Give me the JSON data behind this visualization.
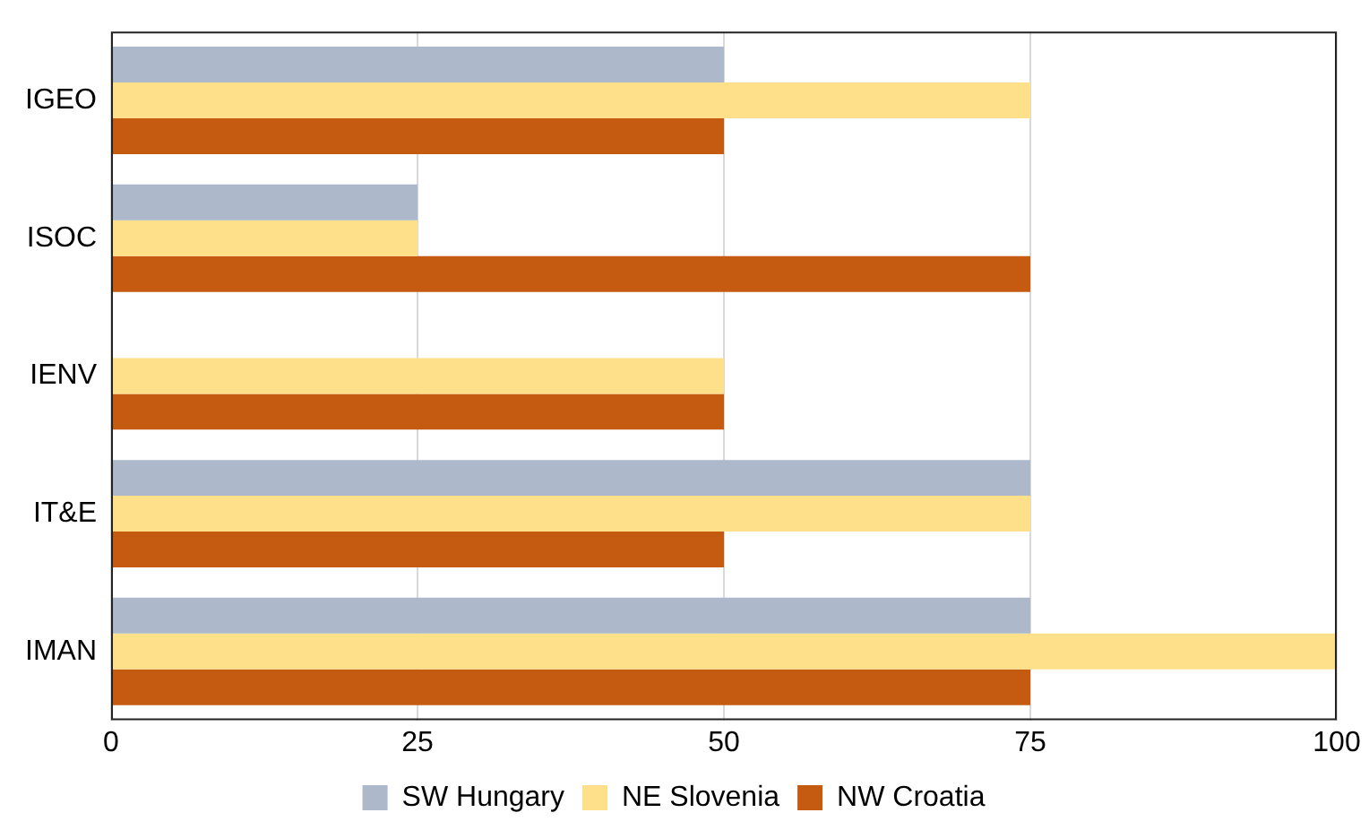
{
  "chart_data": {
    "type": "bar",
    "orientation": "horizontal",
    "categories": [
      "IGEO",
      "ISOC",
      "IENV",
      "IT&E",
      "IMAN"
    ],
    "series": [
      {
        "name": "SW Hungary",
        "color": "#adb9ca",
        "values": [
          50,
          25,
          0,
          75,
          75
        ]
      },
      {
        "name": "NE Slovenia",
        "color": "#ffe08a",
        "values": [
          75,
          25,
          50,
          75,
          100
        ]
      },
      {
        "name": "NW Croatia",
        "color": "#c55a11",
        "values": [
          50,
          75,
          50,
          50,
          75
        ]
      }
    ],
    "xlim": [
      0,
      100
    ],
    "xticks": [
      0,
      25,
      50,
      75,
      100
    ],
    "grid": "x",
    "legend": "bottom"
  }
}
